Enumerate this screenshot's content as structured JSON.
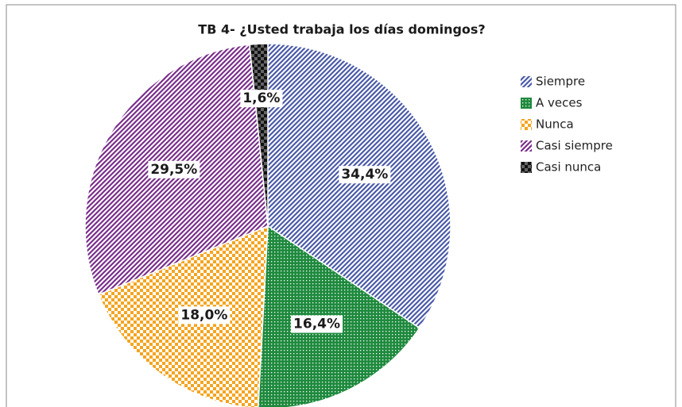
{
  "chart_data": {
    "type": "pie",
    "title": "TB 4- ¿Usted trabaja los días domingos?",
    "categories": [
      "Siempre",
      "A veces",
      "Nunca",
      "Casi siempre",
      "Casi nunca"
    ],
    "values": [
      34.4,
      16.4,
      18.0,
      29.5,
      1.6
    ],
    "value_labels": [
      "34,4%",
      "16,4%",
      "18,0%",
      "29,5%",
      "1,6%"
    ],
    "colors": [
      "#4a5aa8",
      "#1f8a3e",
      "#f5a41f",
      "#7a2e8c",
      "#111111"
    ],
    "legend": "right"
  }
}
